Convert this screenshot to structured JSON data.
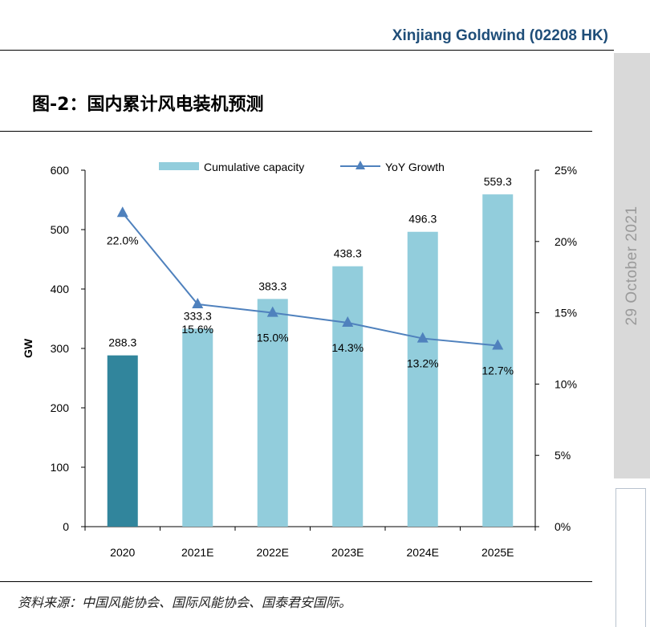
{
  "header": {
    "company": "Xinjiang Goldwind (02208 HK)"
  },
  "sidebar": {
    "date": "29 October 2021"
  },
  "figure": {
    "title": "图-2：国内累计风电装机预测",
    "source": "资料来源：中国风能协会、国际风能协会、国泰君安国际。"
  },
  "chart_data": {
    "type": "bar",
    "categories": [
      "2020",
      "2021E",
      "2022E",
      "2023E",
      "2024E",
      "2025E"
    ],
    "series": [
      {
        "name": "Cumulative capacity",
        "type": "bar",
        "axis": "left",
        "values": [
          288.3,
          333.3,
          383.3,
          438.3,
          496.3,
          559.3
        ],
        "labels": [
          "288.3",
          "333.3",
          "383.3",
          "438.3",
          "496.3",
          "559.3"
        ]
      },
      {
        "name": "YoY Growth",
        "type": "line",
        "axis": "right",
        "values": [
          22.0,
          15.6,
          15.0,
          14.3,
          13.2,
          12.7
        ],
        "labels": [
          "22.0%",
          "15.6%",
          "15.0%",
          "14.3%",
          "13.2%",
          "12.7%"
        ]
      }
    ],
    "ylabel": "GW",
    "ylim": [
      0,
      600
    ],
    "yticks": [
      "0",
      "100",
      "200",
      "300",
      "400",
      "500",
      "600"
    ],
    "y2lim": [
      0,
      25
    ],
    "y2ticks": [
      "0%",
      "5%",
      "10%",
      "15%",
      "20%",
      "25%"
    ],
    "legend_position": "top-center",
    "grid": false,
    "colors": {
      "first_bar": "#31859c",
      "bars": "#92cddc",
      "line": "#4f81bd"
    }
  }
}
